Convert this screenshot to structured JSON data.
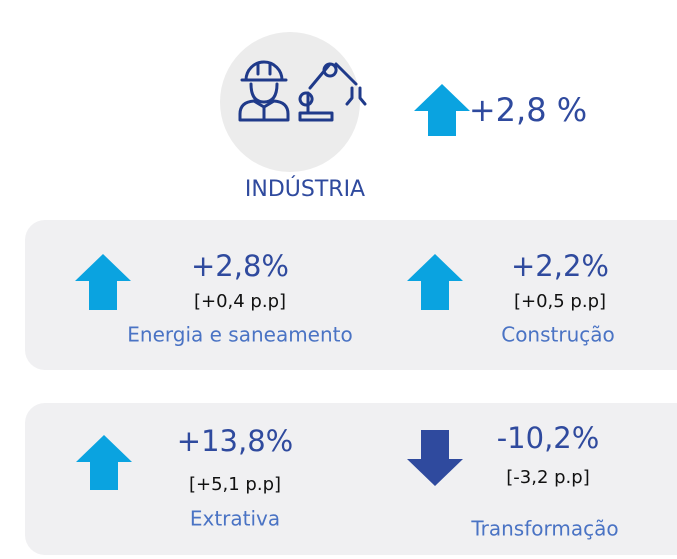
{
  "header": {
    "label": "INDÚSTRIA",
    "value": "+2,8 %"
  },
  "items": [
    {
      "value": "+2,8%",
      "change": "[+0,4 p.p]",
      "name": "Energia e saneamento"
    },
    {
      "value": "+2,2%",
      "change": "[+0,5 p.p]",
      "name": "Construção"
    },
    {
      "value": "+13,8%",
      "change": "[+5,1 p.p]",
      "name": "Extrativa"
    },
    {
      "value": "-10,2%",
      "change": "[-3,2 p.p]",
      "name": "Transformação"
    }
  ]
}
